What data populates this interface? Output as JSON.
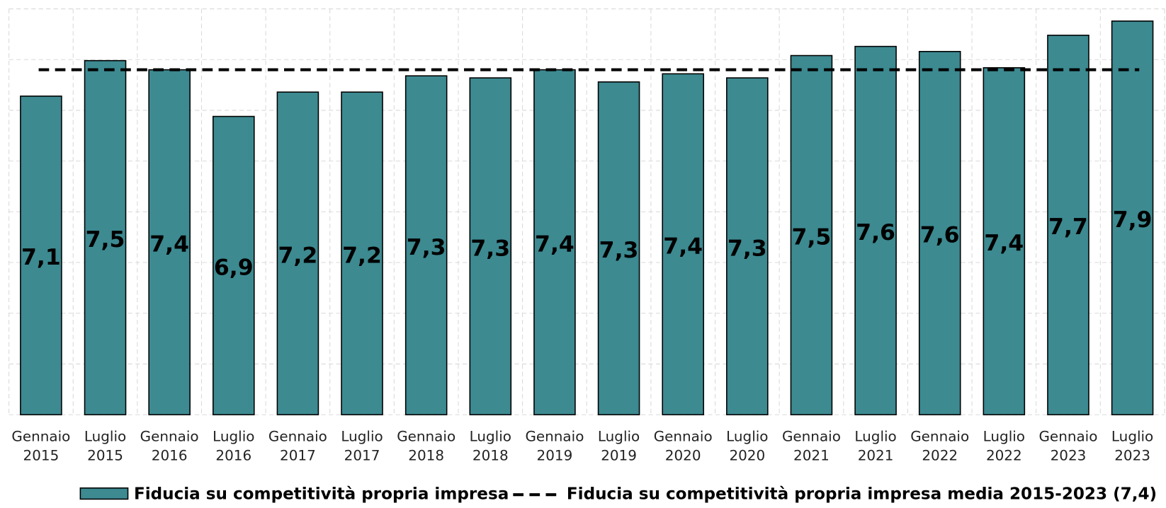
{
  "chart_data": {
    "type": "bar",
    "categories": [
      "Gennaio 2015",
      "Luglio 2015",
      "Gennaio 2016",
      "Luglio 2016",
      "Gennaio 2017",
      "Luglio 2017",
      "Gennaio 2018",
      "Luglio 2018",
      "Gennaio 2019",
      "Luglio 2019",
      "Gennaio 2020",
      "Luglio 2020",
      "Gennaio 2021",
      "Luglio 2021",
      "Gennaio 2022",
      "Luglio 2022",
      "Gennaio 2023",
      "Luglio 2023"
    ],
    "series": [
      {
        "name": "Fiducia su competitività propria impresa",
        "color": "#3d8a91",
        "values": [
          7.14,
          7.49,
          7.4,
          6.94,
          7.18,
          7.18,
          7.34,
          7.32,
          7.4,
          7.28,
          7.36,
          7.32,
          7.54,
          7.63,
          7.58,
          7.42,
          7.74,
          7.88
        ],
        "value_labels": [
          "7,1",
          "7,5",
          "7,4",
          "6,9",
          "7,2",
          "7,2",
          "7,3",
          "7,3",
          "7,4",
          "7,3",
          "7,4",
          "7,3",
          "7,5",
          "7,6",
          "7,6",
          "7,4",
          "7,7",
          "7,9"
        ]
      }
    ],
    "mean_line": {
      "name": "Fiducia su competitività propria impresa media 2015-2023 (7,4)",
      "value": 7.4,
      "color": "#000000"
    },
    "ylim": [
      4,
      8
    ],
    "yticks": [
      4,
      4.5,
      5,
      5.5,
      6,
      6.5,
      7,
      7.5,
      8
    ],
    "grid": true
  }
}
